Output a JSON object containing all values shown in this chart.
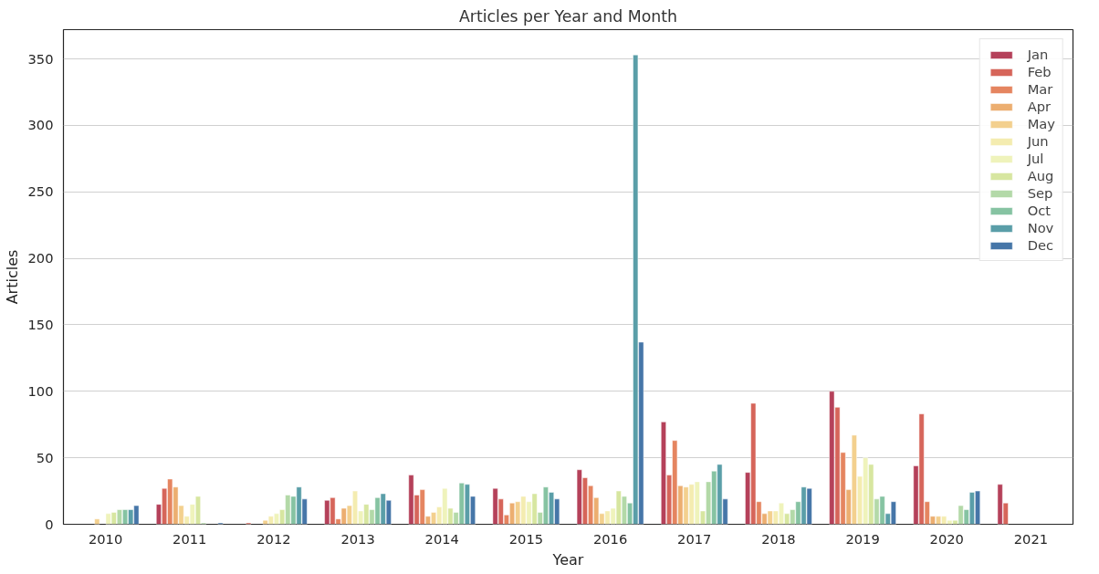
{
  "chart_data": {
    "type": "bar",
    "title": "Articles per Year and Month",
    "xlabel": "Year",
    "ylabel": "Articles",
    "categories": [
      "2010",
      "2011",
      "2012",
      "2013",
      "2014",
      "2015",
      "2016",
      "2017",
      "2018",
      "2019",
      "2020",
      "2021"
    ],
    "series": [
      {
        "name": "Jan",
        "color": "#b5415a",
        "values": [
          null,
          15,
          null,
          18,
          37,
          27,
          41,
          77,
          39,
          100,
          44,
          30
        ]
      },
      {
        "name": "Feb",
        "color": "#d6655a",
        "values": [
          null,
          27,
          1,
          20,
          22,
          19,
          35,
          37,
          91,
          88,
          83,
          16
        ]
      },
      {
        "name": "Mar",
        "color": "#e58560",
        "values": [
          null,
          34,
          null,
          4,
          26,
          7,
          29,
          63,
          17,
          54,
          17,
          null
        ]
      },
      {
        "name": "Apr",
        "color": "#ecae70",
        "values": [
          null,
          28,
          null,
          12,
          6,
          16,
          20,
          29,
          8,
          26,
          6,
          null
        ]
      },
      {
        "name": "May",
        "color": "#f3d08e",
        "values": [
          4,
          14,
          3,
          14,
          9,
          17,
          8,
          28,
          10,
          67,
          6,
          null
        ]
      },
      {
        "name": "Jun",
        "color": "#f4ecb0",
        "values": [
          null,
          6,
          6,
          25,
          13,
          21,
          10,
          30,
          10,
          36,
          6,
          null
        ]
      },
      {
        "name": "Jul",
        "color": "#eff3bb",
        "values": [
          8,
          15,
          8,
          10,
          27,
          17,
          12,
          32,
          16,
          50,
          3,
          null
        ]
      },
      {
        "name": "Aug",
        "color": "#d7e6a0",
        "values": [
          9,
          21,
          11,
          15,
          12,
          23,
          25,
          10,
          8,
          45,
          3,
          null
        ]
      },
      {
        "name": "Sep",
        "color": "#b3d9a8",
        "values": [
          11,
          1,
          22,
          11,
          9,
          9,
          21,
          32,
          11,
          19,
          14,
          null
        ]
      },
      {
        "name": "Oct",
        "color": "#86c3a2",
        "values": [
          11,
          null,
          21,
          20,
          31,
          28,
          16,
          40,
          17,
          21,
          11,
          null
        ]
      },
      {
        "name": "Nov",
        "color": "#5a9ea8",
        "values": [
          11,
          null,
          28,
          23,
          30,
          24,
          353,
          45,
          28,
          8,
          24,
          null
        ]
      },
      {
        "name": "Dec",
        "color": "#4676a8",
        "values": [
          14,
          1,
          19,
          18,
          21,
          19,
          137,
          19,
          27,
          17,
          25,
          null
        ]
      }
    ],
    "ylim": [
      0,
      372
    ],
    "yticks": [
      0,
      50,
      100,
      150,
      200,
      250,
      300,
      350
    ],
    "grid": "y",
    "legend": "top right"
  }
}
